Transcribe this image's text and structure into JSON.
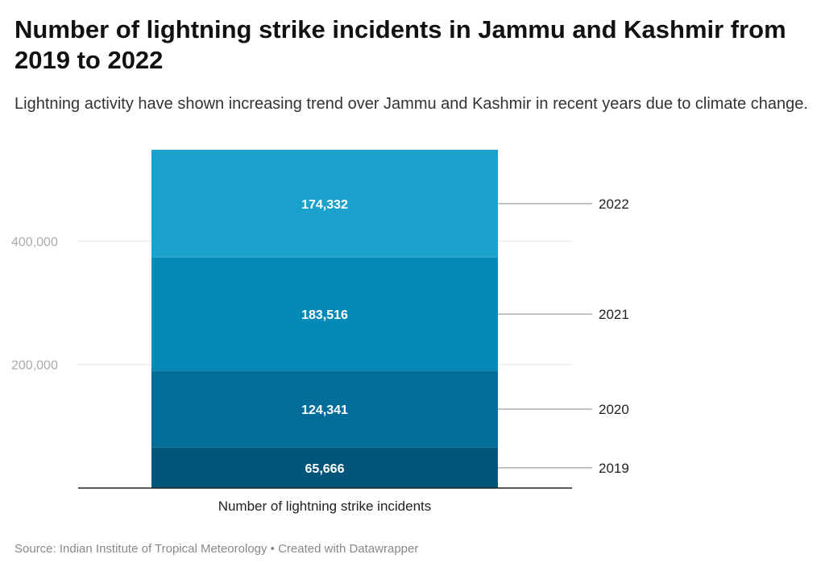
{
  "chart_data": {
    "type": "bar",
    "stacked": true,
    "title": "Number of lightning strike incidents in Jammu and Kashmir from 2019 to 2022",
    "subtitle": "Lightning activity have shown increasing trend over Jammu and Kashmir in recent years due to climate change.",
    "xlabel": "Number of lightning strike incidents",
    "categories": [
      "Number of lightning strike incidents"
    ],
    "series": [
      {
        "name": "2019",
        "values": [
          65666
        ],
        "label": "65,666",
        "color": "#03557a"
      },
      {
        "name": "2020",
        "values": [
          124341
        ],
        "label": "124,341",
        "color": "#036d99"
      },
      {
        "name": "2021",
        "values": [
          183516
        ],
        "label": "183,516",
        "color": "#0589b5"
      },
      {
        "name": "2022",
        "values": [
          174332
        ],
        "label": "174,332",
        "color": "#1aa1cc"
      }
    ],
    "yticks": [
      {
        "value": 200000,
        "label": "200,000"
      },
      {
        "value": 400000,
        "label": "400,000"
      }
    ],
    "ylim": [
      0,
      547855
    ],
    "grid": true,
    "legend": "right, direct labels"
  },
  "footer": "Source: Indian Institute of Tropical Meteorology • Created with Datawrapper"
}
